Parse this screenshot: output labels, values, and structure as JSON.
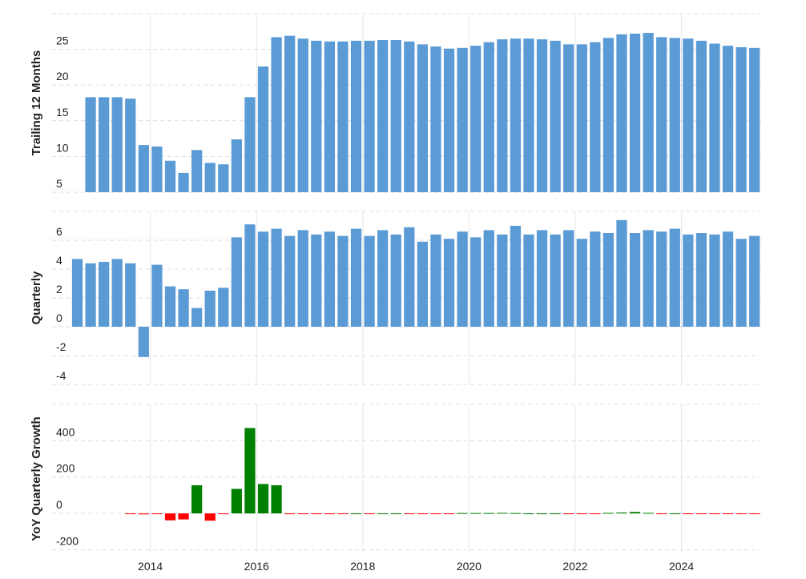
{
  "chart_data": [
    {
      "type": "bar",
      "y_label": "Trailing 12 Months",
      "color": "#5b9bd5",
      "grid": true,
      "x": [
        2012.625,
        2012.875,
        2013.125,
        2013.375,
        2013.625,
        2013.875,
        2014.125,
        2014.375,
        2014.625,
        2014.875,
        2015.125,
        2015.375,
        2015.625,
        2015.875,
        2016.125,
        2016.375,
        2016.625,
        2016.875,
        2017.125,
        2017.375,
        2017.625,
        2017.875,
        2018.125,
        2018.375,
        2018.625,
        2018.875,
        2019.125,
        2019.375,
        2019.625,
        2019.875,
        2020.125,
        2020.375,
        2020.625,
        2020.875,
        2021.125,
        2021.375,
        2021.625,
        2021.875,
        2022.125,
        2022.375,
        2022.625,
        2022.875,
        2023.125,
        2023.375,
        2023.625,
        2023.875,
        2024.125,
        2024.375,
        2024.625,
        2024.875,
        2025.125,
        2025.375
      ],
      "values": [
        null,
        18.3,
        18.3,
        18.3,
        18.1,
        11.6,
        11.4,
        9.4,
        7.7,
        10.9,
        9.1,
        8.9,
        12.4,
        18.3,
        22.6,
        26.7,
        26.9,
        26.5,
        26.2,
        26.1,
        26.1,
        26.2,
        26.2,
        26.3,
        26.3,
        26.1,
        25.7,
        25.4,
        25.1,
        25.2,
        25.5,
        26.0,
        26.4,
        26.5,
        26.5,
        26.4,
        26.2,
        25.7,
        25.7,
        26.0,
        26.6,
        27.1,
        27.2,
        27.3,
        26.7,
        26.6,
        26.5,
        26.2,
        25.8,
        25.5,
        25.3,
        25.2
      ],
      "xlim": [
        2012.15,
        2025.5
      ],
      "xticks": [
        2014,
        2016,
        2018,
        2020,
        2022,
        2024
      ],
      "ylim": [
        5,
        30
      ],
      "yticks": [
        5,
        10,
        15,
        20,
        25
      ]
    },
    {
      "type": "bar",
      "y_label": "Quarterly",
      "color": "#5b9bd5",
      "grid": true,
      "x": [
        2012.625,
        2012.875,
        2013.125,
        2013.375,
        2013.625,
        2013.875,
        2014.125,
        2014.375,
        2014.625,
        2014.875,
        2015.125,
        2015.375,
        2015.625,
        2015.875,
        2016.125,
        2016.375,
        2016.625,
        2016.875,
        2017.125,
        2017.375,
        2017.625,
        2017.875,
        2018.125,
        2018.375,
        2018.625,
        2018.875,
        2019.125,
        2019.375,
        2019.625,
        2019.875,
        2020.125,
        2020.375,
        2020.625,
        2020.875,
        2021.125,
        2021.375,
        2021.625,
        2021.875,
        2022.125,
        2022.375,
        2022.625,
        2022.875,
        2023.125,
        2023.375,
        2023.625,
        2023.875,
        2024.125,
        2024.375,
        2024.625,
        2024.875,
        2025.125,
        2025.375
      ],
      "values": [
        4.7,
        4.4,
        4.5,
        4.7,
        4.4,
        -2.1,
        4.3,
        2.8,
        2.6,
        1.3,
        2.5,
        2.7,
        6.2,
        7.1,
        6.6,
        6.8,
        6.3,
        6.7,
        6.4,
        6.6,
        6.3,
        6.8,
        6.3,
        6.7,
        6.4,
        6.9,
        5.9,
        6.4,
        6.1,
        6.6,
        6.2,
        6.7,
        6.4,
        7.0,
        6.4,
        6.7,
        6.4,
        6.7,
        6.1,
        6.6,
        6.5,
        7.4,
        6.5,
        6.7,
        6.6,
        6.8,
        6.4,
        6.5,
        6.4,
        6.6,
        6.1,
        6.3
      ],
      "xlim": [
        2012.15,
        2025.5
      ],
      "xticks": [
        2014,
        2016,
        2018,
        2020,
        2022,
        2024
      ],
      "ylim": [
        -4,
        8
      ],
      "yticks": [
        -4,
        -2,
        0,
        2,
        4,
        6
      ]
    },
    {
      "type": "bar",
      "y_label": "YoY Quarterly Growth",
      "positive_color": "#008000",
      "negative_color": "#ff0000",
      "grid": true,
      "x": [
        2012.625,
        2012.875,
        2013.125,
        2013.375,
        2013.625,
        2013.875,
        2014.125,
        2014.375,
        2014.625,
        2014.875,
        2015.125,
        2015.375,
        2015.625,
        2015.875,
        2016.125,
        2016.375,
        2016.625,
        2016.875,
        2017.125,
        2017.375,
        2017.625,
        2017.875,
        2018.125,
        2018.375,
        2018.625,
        2018.875,
        2019.125,
        2019.375,
        2019.625,
        2019.875,
        2020.125,
        2020.375,
        2020.625,
        2020.875,
        2021.125,
        2021.375,
        2021.625,
        2021.875,
        2022.125,
        2022.375,
        2022.625,
        2022.875,
        2023.125,
        2023.375,
        2023.625,
        2023.875,
        2024.125,
        2024.375,
        2024.625,
        2024.875,
        2025.125,
        2025.375
      ],
      "values": [
        null,
        null,
        null,
        null,
        -4,
        -5,
        -3,
        -38,
        -33,
        155,
        -40,
        -3,
        135,
        470,
        162,
        155,
        -4,
        -4,
        -1,
        -1,
        -1,
        0,
        -1,
        0,
        0,
        -2,
        -3,
        -3,
        -3,
        2,
        2,
        2,
        3,
        2,
        0,
        0,
        0,
        -1,
        -3,
        -3,
        3,
        5,
        8,
        3,
        -3,
        0,
        -2,
        -3,
        -3,
        -3,
        -4,
        -3
      ],
      "xlim": [
        2012.15,
        2025.5
      ],
      "xticks": [
        2014,
        2016,
        2018,
        2020,
        2022,
        2024
      ],
      "ylim": [
        -220,
        600
      ],
      "yticks": [
        -200,
        0,
        200,
        400
      ]
    }
  ]
}
